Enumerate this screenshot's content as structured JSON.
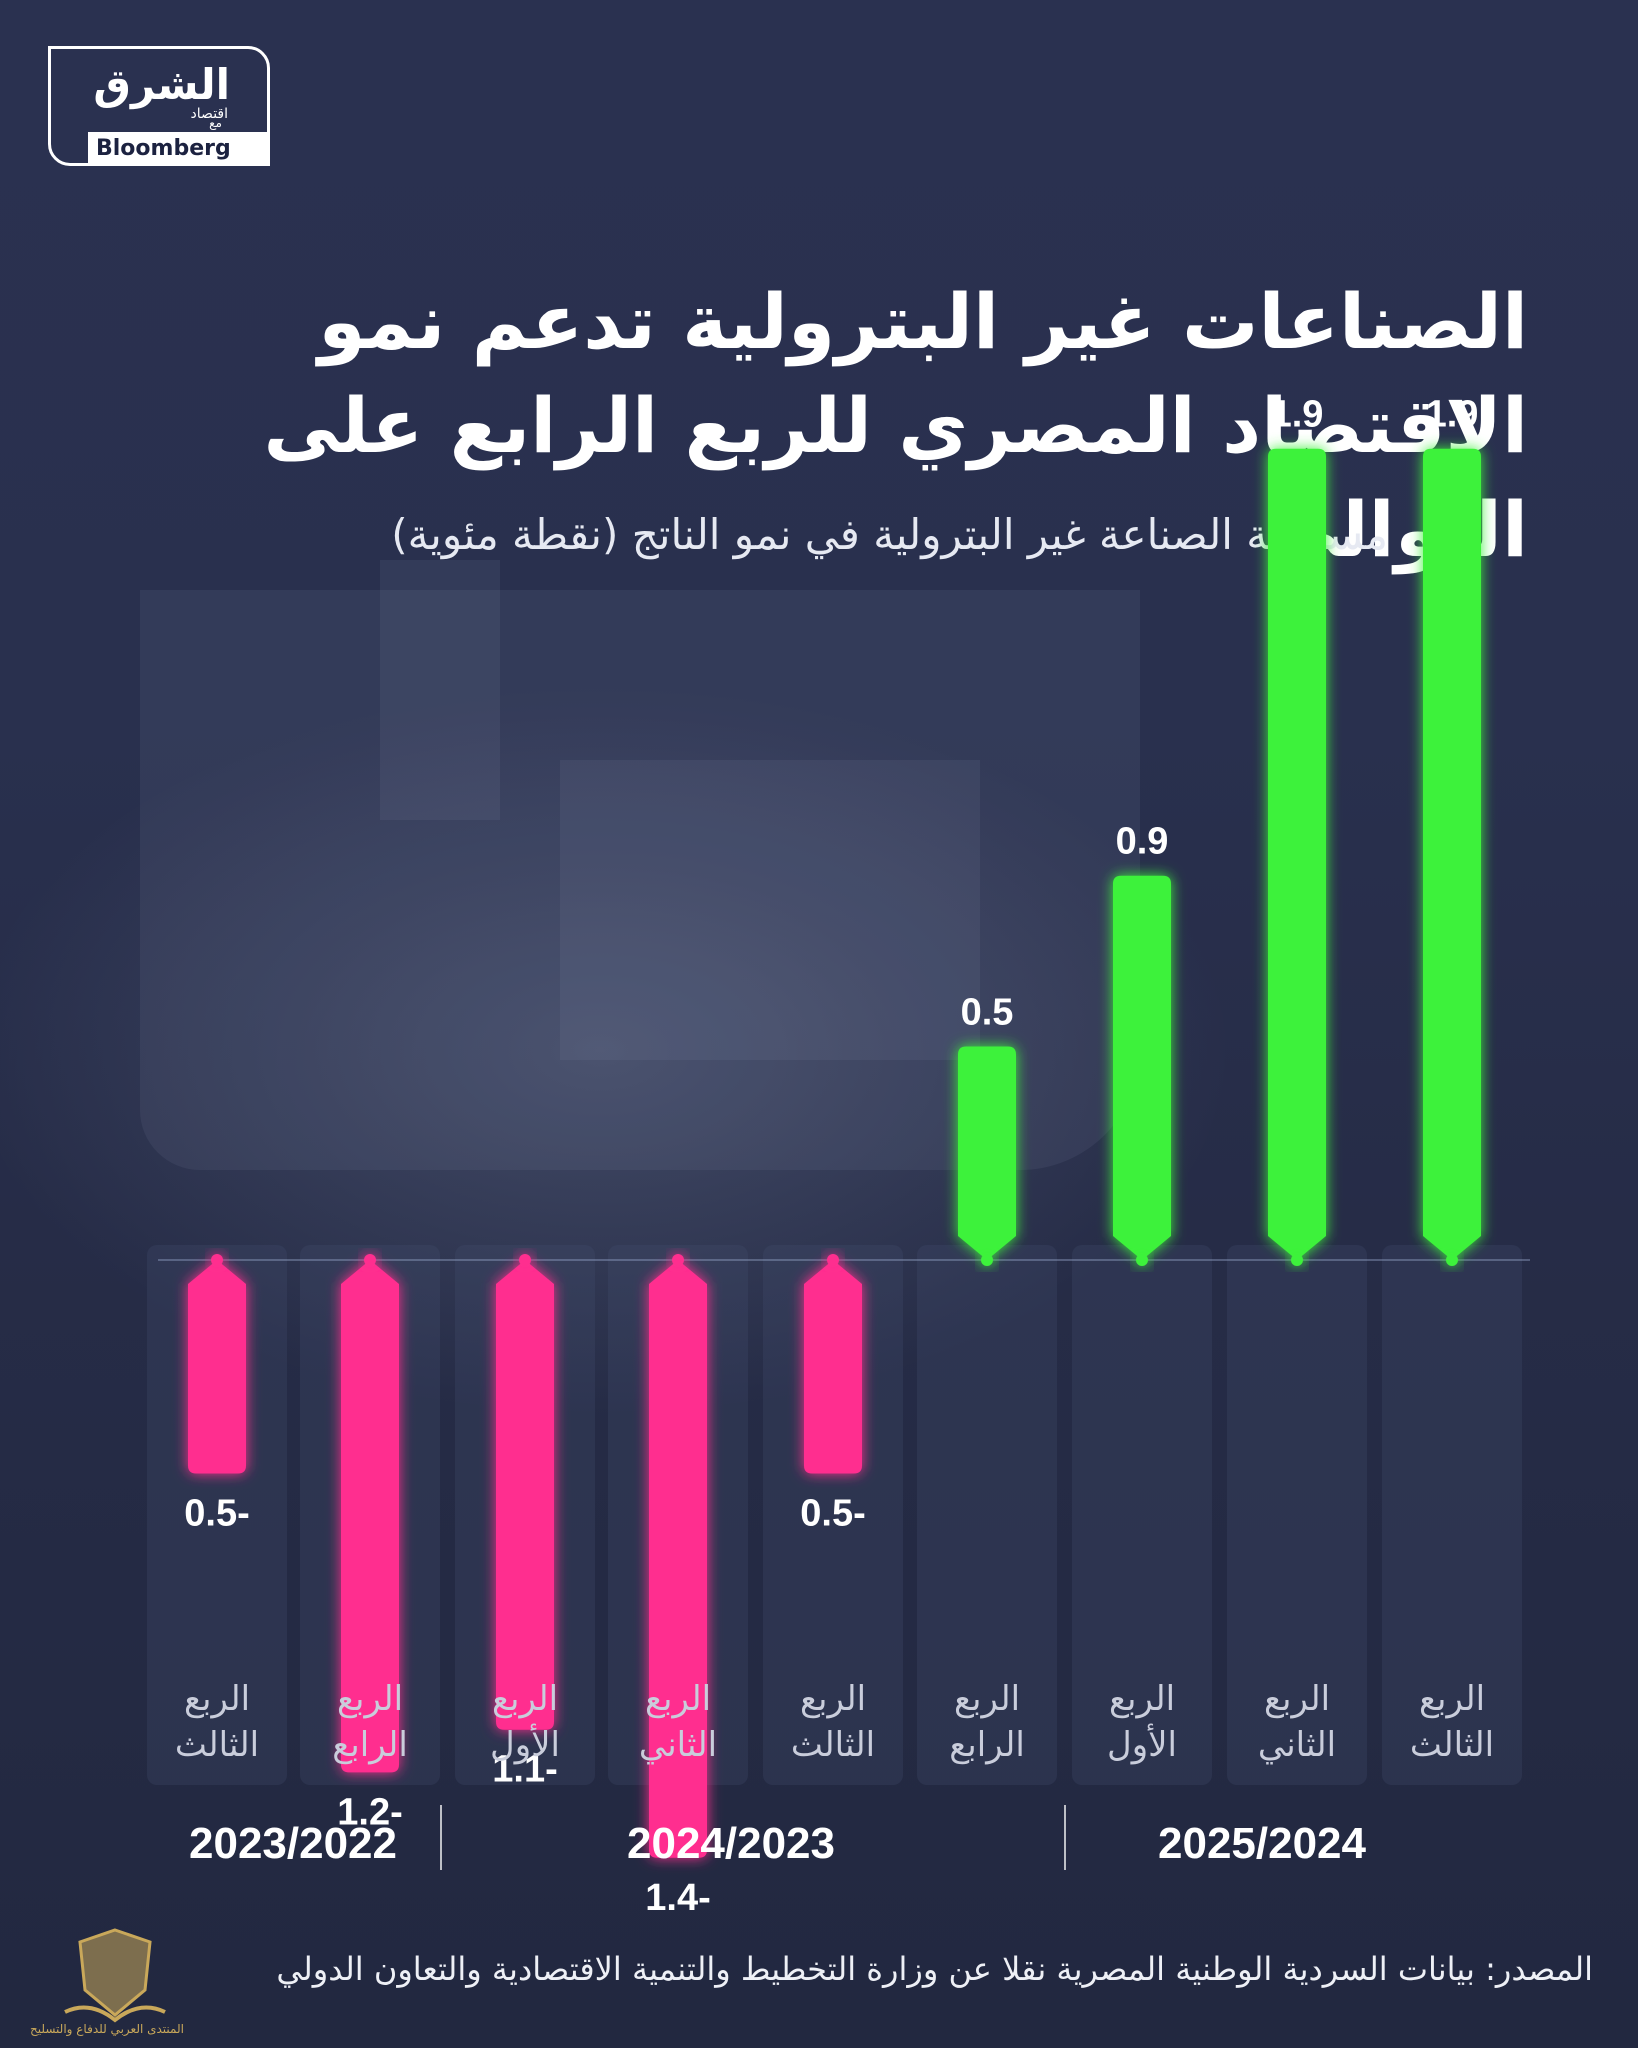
{
  "brand": {
    "name": "الشرق",
    "sub": "اقتصاد",
    "partner_prefix": "مع",
    "partner": "Bloomberg"
  },
  "title": "الصناعات غير البترولية تدعم نمو الاقتصاد المصري للربع الرابع على التوالي",
  "subtitle": "مساهمة الصناعة غير البترولية في نمو الناتج (نقطة مئوية)",
  "source": "المصدر: بيانات السردية الوطنية المصرية نقلا عن وزارة التخطيط والتنمية الاقتصادية والتعاون الدولي",
  "watermark_text": "المنتدى العربي للدفاع والتسليح",
  "colors": {
    "positive": "#3df23b",
    "negative": "#ff2e8f",
    "background": "#29304e",
    "category_tile": "#313858"
  },
  "chart_data": {
    "type": "bar",
    "title": "الصناعات غير البترولية تدعم نمو الاقتصاد المصري للربع الرابع على التوالي",
    "subtitle": "مساهمة الصناعة غير البترولية في نمو الناتج (نقطة مئوية)",
    "categories": [
      "الربع الثالث",
      "الربع الرابع",
      "الربع الأول",
      "الربع الثاني",
      "الربع الثالث",
      "الربع الرابع",
      "الربع الأول",
      "الربع الثاني",
      "الربع الثالث"
    ],
    "category_lines": [
      [
        "الربع",
        "الثالث"
      ],
      [
        "الربع",
        "الرابع"
      ],
      [
        "الربع",
        "الأول"
      ],
      [
        "الربع",
        "الثاني"
      ],
      [
        "الربع",
        "الثالث"
      ],
      [
        "الربع",
        "الرابع"
      ],
      [
        "الربع",
        "الأول"
      ],
      [
        "الربع",
        "الثاني"
      ],
      [
        "الربع",
        "الثالث"
      ]
    ],
    "values": [
      -0.5,
      -1.2,
      -1.1,
      -1.4,
      -0.5,
      0.5,
      0.9,
      1.9,
      1.9
    ],
    "value_labels": [
      "0.5-",
      "1.2-",
      "1.1-",
      "1.4-",
      "0.5-",
      "0.5",
      "0.9",
      "1.9",
      "1.9"
    ],
    "groups": [
      {
        "label": "2023/2022",
        "count": 2
      },
      {
        "label": "2024/2023",
        "count": 4
      },
      {
        "label": "2025/2024",
        "count": 3
      }
    ],
    "ylim": [
      -1.4,
      1.9
    ],
    "grid": false,
    "legend": "none"
  }
}
